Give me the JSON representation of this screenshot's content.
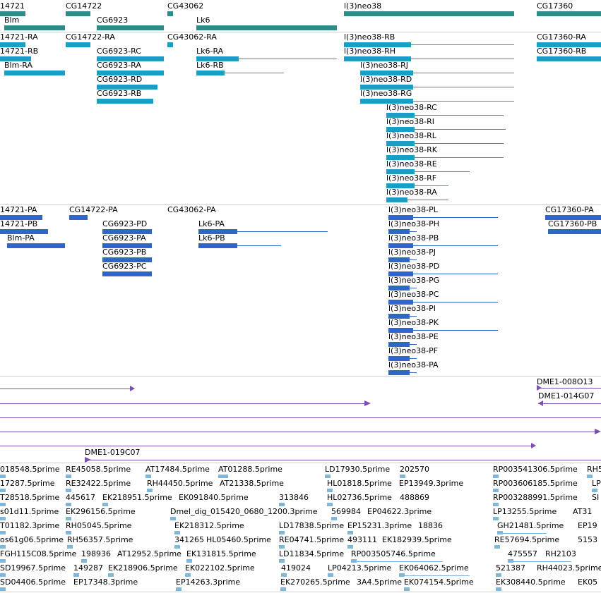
{
  "colors": {
    "gene": "#2e8b87",
    "transcript": "#1a9ec4",
    "protein": "#3265c8",
    "clone": "#7a4fb0",
    "est": "#7fb6d9",
    "divider": "#cfcfcf"
  },
  "tracks": {
    "genes": {
      "items": [
        {
          "label": "14721"
        },
        {
          "label": "Blm"
        },
        {
          "label": "CG14722"
        },
        {
          "label": "CG6923"
        },
        {
          "label": "CG43062"
        },
        {
          "label": "Lk6"
        },
        {
          "label": "l(3)neo38"
        },
        {
          "label": "CG17360"
        }
      ]
    },
    "transcripts": {
      "items": [
        {
          "label": "14721-RA"
        },
        {
          "label": "14721-RB"
        },
        {
          "label": "Blm-RA"
        },
        {
          "label": "CG14722-RA"
        },
        {
          "label": "CG6923-RC"
        },
        {
          "label": "CG6923-RA"
        },
        {
          "label": "CG6923-RD"
        },
        {
          "label": "CG6923-RB"
        },
        {
          "label": "CG43062-RA"
        },
        {
          "label": "Lk6-RA"
        },
        {
          "label": "Lk6-RB"
        },
        {
          "label": "l(3)neo38-RB"
        },
        {
          "label": "l(3)neo38-RH"
        },
        {
          "label": "l(3)neo38-RJ"
        },
        {
          "label": "l(3)neo38-RD"
        },
        {
          "label": "l(3)neo38-RG"
        },
        {
          "label": "l(3)neo38-RC"
        },
        {
          "label": "l(3)neo38-RI"
        },
        {
          "label": "l(3)neo38-RL"
        },
        {
          "label": "l(3)neo38-RK"
        },
        {
          "label": "l(3)neo38-RE"
        },
        {
          "label": "l(3)neo38-RF"
        },
        {
          "label": "l(3)neo38-RA"
        },
        {
          "label": "CG17360-RA"
        },
        {
          "label": "CG17360-RB"
        }
      ]
    },
    "proteins": {
      "items": [
        {
          "label": "14721-PA"
        },
        {
          "label": "14721-PB"
        },
        {
          "label": "Blm-PA"
        },
        {
          "label": "CG14722-PA"
        },
        {
          "label": "CG6923-PD"
        },
        {
          "label": "CG6923-PA"
        },
        {
          "label": "CG6923-PB"
        },
        {
          "label": "CG6923-PC"
        },
        {
          "label": "CG43062-PA"
        },
        {
          "label": "Lk6-PA"
        },
        {
          "label": "Lk6-PB"
        },
        {
          "label": "l(3)neo38-PL"
        },
        {
          "label": "l(3)neo38-PH"
        },
        {
          "label": "l(3)neo38-PB"
        },
        {
          "label": "l(3)neo38-PJ"
        },
        {
          "label": "l(3)neo38-PD"
        },
        {
          "label": "l(3)neo38-PG"
        },
        {
          "label": "l(3)neo38-PC"
        },
        {
          "label": "l(3)neo38-PI"
        },
        {
          "label": "l(3)neo38-PK"
        },
        {
          "label": "l(3)neo38-PE"
        },
        {
          "label": "l(3)neo38-PF"
        },
        {
          "label": "l(3)neo38-PA"
        },
        {
          "label": "CG17360-PA"
        },
        {
          "label": "CG17360-PB"
        }
      ]
    },
    "clones": {
      "items": [
        {
          "label": "DME1-008O13"
        },
        {
          "label": "DME1-014G07"
        },
        {
          "label": "DME1-019C07"
        }
      ]
    },
    "ests": {
      "rows": [
        [
          "018548.5prime",
          "RE45058.5prime",
          "AT17484.5prime",
          "AT01288.5prime",
          "LD17930.5prime",
          "202570",
          "RP003541306.5prime",
          "RH5"
        ],
        [
          "17287.5prime",
          "RE32422.5prime",
          "RH44450.5prime",
          "AT21338.5prime",
          "HL01818.5prime",
          "EP13949.3prime",
          "RP003606185.5prime",
          "LP"
        ],
        [
          "T28518.5prime",
          "445617",
          "EK218951.5prime",
          "EK091840.5prime",
          "313846",
          "HL02736.5prime",
          "488869",
          "RP003288991.5prime",
          "SI"
        ],
        [
          "s01d11.5prime",
          "EK296156.5prime",
          "Dmel_dig_015420_0680_1200.3prime",
          "569984",
          "EP04622.3prime",
          "LP13255.5prime",
          "AT31"
        ],
        [
          "T01182.3prime",
          "RH05045.5prime",
          "EK218312.5prime",
          "LD17838.5prime",
          "EP15231.3prime",
          "18836",
          "GH21481.5prime",
          "EP19"
        ],
        [
          "os61g06.5prime",
          "RH56357.5prime",
          "341265",
          "HL05460.5prime",
          "RE04741.5prime",
          "493111",
          "EK182939.5prime",
          "RE57694.5prime",
          "5153"
        ],
        [
          "FGH115C08.5prime",
          "198936",
          "AT12952.5prime",
          "EK131815.5prime",
          "LD11834.5prime",
          "RP003505746.5prime",
          "475557",
          "RH2103"
        ],
        [
          "SD19967.5prime",
          "149287",
          "EK218906.5prime",
          "EK022102.5prime",
          "419024",
          "LP04213.5prime",
          "EK064062.5prime",
          "521387",
          "RH44023.5prime"
        ],
        [
          "SD04406.5prime",
          "EP17348.3prime",
          "EP14263.3prime",
          "EK270265.5prime",
          "3A4.5prime",
          "EK074154.5prime",
          "EK308440.5prime",
          "EK05"
        ]
      ]
    }
  }
}
